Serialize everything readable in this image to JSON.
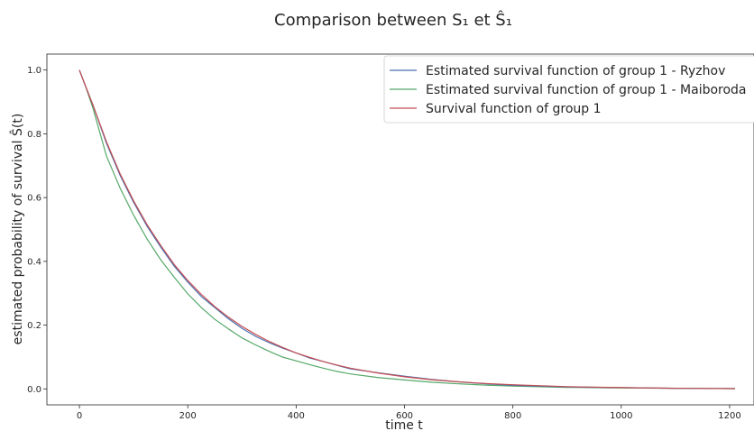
{
  "chart_data": {
    "type": "line",
    "title": "Comparison between S₁ et Ŝ₁",
    "xlabel": "time t",
    "ylabel": "estimated probability of survival Ŝ(t)",
    "xlim": [
      -60,
      1245
    ],
    "ylim": [
      -0.05,
      1.05
    ],
    "xticks": [
      0,
      200,
      400,
      600,
      800,
      1000,
      1200
    ],
    "yticks": [
      0.0,
      0.2,
      0.4,
      0.6,
      0.8,
      1.0
    ],
    "xtick_labels": [
      "0",
      "200",
      "400",
      "600",
      "800",
      "1000",
      "1200"
    ],
    "ytick_labels": [
      "0.0",
      "0.2",
      "0.4",
      "0.6",
      "0.8",
      "1.0"
    ],
    "grid": false,
    "legend_position": "top-right",
    "series": [
      {
        "name": "Estimated survival function of group 1 - Ryzhov",
        "color": "#4c72b0",
        "x": [
          0,
          10,
          25,
          50,
          75,
          100,
          125,
          150,
          175,
          200,
          225,
          250,
          275,
          300,
          325,
          350,
          375,
          400,
          425,
          450,
          475,
          500,
          550,
          600,
          650,
          700,
          750,
          800,
          900,
          1000,
          1100,
          1210
        ],
        "y": [
          1.0,
          0.955,
          0.89,
          0.77,
          0.67,
          0.585,
          0.51,
          0.445,
          0.385,
          0.335,
          0.29,
          0.255,
          0.22,
          0.19,
          0.165,
          0.145,
          0.128,
          0.113,
          0.097,
          0.086,
          0.074,
          0.063,
          0.051,
          0.04,
          0.03,
          0.022,
          0.016,
          0.011,
          0.006,
          0.004,
          0.002,
          0.001
        ]
      },
      {
        "name": "Estimated survival function of group 1 - Maiboroda",
        "color": "#55a868",
        "x": [
          0,
          10,
          25,
          50,
          75,
          100,
          125,
          150,
          175,
          200,
          225,
          250,
          275,
          300,
          325,
          350,
          375,
          400,
          425,
          450,
          475,
          500,
          550,
          600,
          650,
          700,
          750,
          800,
          900,
          1000,
          1100,
          1210
        ],
        "y": [
          1.0,
          0.955,
          0.88,
          0.73,
          0.63,
          0.545,
          0.47,
          0.405,
          0.35,
          0.298,
          0.255,
          0.218,
          0.188,
          0.16,
          0.138,
          0.118,
          0.1,
          0.088,
          0.076,
          0.065,
          0.055,
          0.047,
          0.036,
          0.028,
          0.021,
          0.016,
          0.012,
          0.009,
          0.005,
          0.003,
          0.002,
          0.001
        ]
      },
      {
        "name": "Survival function of group 1",
        "color": "#c44e52",
        "x": [
          0,
          10,
          25,
          50,
          75,
          100,
          125,
          150,
          175,
          200,
          225,
          250,
          275,
          300,
          325,
          350,
          375,
          400,
          425,
          450,
          475,
          500,
          550,
          600,
          650,
          700,
          750,
          800,
          900,
          1000,
          1100,
          1210
        ],
        "y": [
          1.0,
          0.955,
          0.89,
          0.775,
          0.675,
          0.59,
          0.515,
          0.45,
          0.39,
          0.34,
          0.296,
          0.258,
          0.225,
          0.196,
          0.171,
          0.149,
          0.13,
          0.113,
          0.099,
          0.086,
          0.075,
          0.065,
          0.05,
          0.038,
          0.029,
          0.022,
          0.017,
          0.013,
          0.007,
          0.004,
          0.002,
          0.001
        ]
      }
    ]
  }
}
